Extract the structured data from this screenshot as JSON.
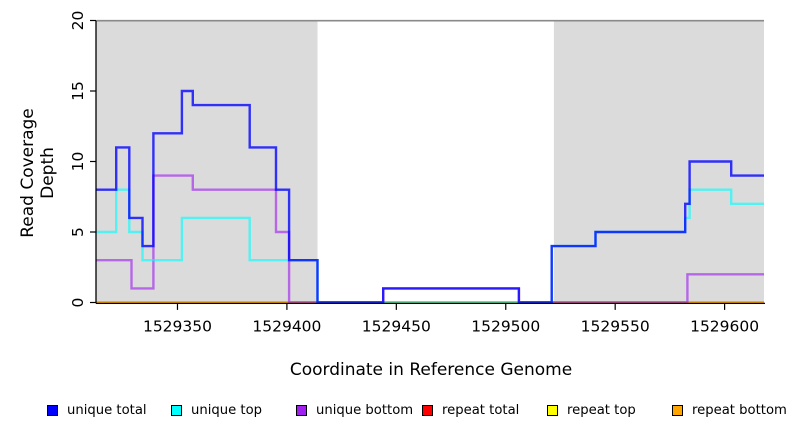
{
  "figure": {
    "x_axis_title": "Coordinate in Reference Genome",
    "y_axis_title": "Read Coverage Depth"
  },
  "chart_data": {
    "type": "line",
    "subtype": "step",
    "title": "",
    "xlabel": "Coordinate in Reference Genome",
    "ylabel": "Read Coverage Depth",
    "xlim": [
      1529313,
      1529618
    ],
    "ylim": [
      0,
      20
    ],
    "grid": false,
    "legend_position": "bottom",
    "xticks": [
      1529350,
      1529400,
      1529450,
      1529500,
      1529550,
      1529600
    ],
    "yticks": [
      0,
      5,
      10,
      15,
      20
    ],
    "shaded_regions": [
      {
        "name": "repeat-region-left",
        "x0": 1529313,
        "x1": 1529414,
        "color": "#dbdbdb"
      },
      {
        "name": "repeat-region-right",
        "x0": 1529522,
        "x1": 1529618,
        "color": "#dbdbdb"
      }
    ],
    "top_boundary_color": "#8a8a8a",
    "series": [
      {
        "name": "repeat total",
        "color": "#ff0000",
        "opacity": 1,
        "steps": [
          [
            1529313,
            0
          ],
          [
            1529618,
            0
          ]
        ]
      },
      {
        "name": "repeat top",
        "color": "#ffff00",
        "opacity": 1,
        "steps": [
          [
            1529313,
            0
          ],
          [
            1529618,
            0
          ]
        ]
      },
      {
        "name": "repeat bottom",
        "color": "#ffa500",
        "opacity": 1,
        "steps": [
          [
            1529313,
            0
          ],
          [
            1529618,
            0
          ]
        ]
      },
      {
        "name": "unique bottom",
        "color": "#a020f0",
        "opacity": 0.62,
        "steps": [
          [
            1529313,
            3
          ],
          [
            1529329,
            1
          ],
          [
            1529339,
            9
          ],
          [
            1529357,
            8
          ],
          [
            1529395,
            5
          ],
          [
            1529401,
            0
          ],
          [
            1529444,
            1
          ],
          [
            1529506,
            0
          ],
          [
            1529583,
            2
          ],
          [
            1529618,
            2
          ]
        ]
      },
      {
        "name": "unique top",
        "color": "#00ffff",
        "opacity": 0.62,
        "steps": [
          [
            1529313,
            5
          ],
          [
            1529322,
            8
          ],
          [
            1529328,
            5
          ],
          [
            1529334,
            3
          ],
          [
            1529352,
            6
          ],
          [
            1529383,
            3
          ],
          [
            1529414,
            0
          ],
          [
            1529521,
            4
          ],
          [
            1529541,
            5
          ],
          [
            1529582,
            6
          ],
          [
            1529584,
            8
          ],
          [
            1529603,
            7
          ],
          [
            1529618,
            7
          ]
        ]
      },
      {
        "name": "unique total",
        "color": "#0000ff",
        "opacity": 0.78,
        "steps": [
          [
            1529313,
            8
          ],
          [
            1529322,
            11
          ],
          [
            1529328,
            6
          ],
          [
            1529334,
            4
          ],
          [
            1529339,
            12
          ],
          [
            1529352,
            15
          ],
          [
            1529357,
            14
          ],
          [
            1529383,
            11
          ],
          [
            1529395,
            8
          ],
          [
            1529401,
            3
          ],
          [
            1529414,
            0
          ],
          [
            1529444,
            1
          ],
          [
            1529506,
            0
          ],
          [
            1529521,
            4
          ],
          [
            1529541,
            5
          ],
          [
            1529582,
            7
          ],
          [
            1529584,
            10
          ],
          [
            1529603,
            9
          ],
          [
            1529618,
            9
          ]
        ]
      }
    ],
    "legend": [
      {
        "label": "unique total",
        "color": "#0000ff"
      },
      {
        "label": "unique top",
        "color": "#00ffff"
      },
      {
        "label": "unique bottom",
        "color": "#a020f0"
      },
      {
        "label": "repeat total",
        "color": "#ff0000"
      },
      {
        "label": "repeat top",
        "color": "#ffff00"
      },
      {
        "label": "repeat bottom",
        "color": "#ffa500"
      }
    ]
  }
}
